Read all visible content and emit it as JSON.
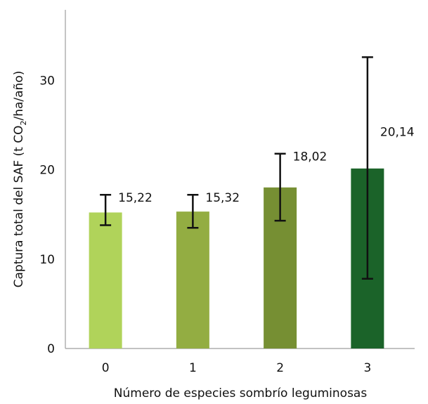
{
  "chart_data": {
    "type": "bar",
    "categories": [
      "0",
      "1",
      "2",
      "3"
    ],
    "values": [
      15.22,
      15.32,
      18.02,
      20.14
    ],
    "value_labels": [
      "15,22",
      "15,32",
      "18,02",
      "20,14"
    ],
    "error_bars": [
      {
        "low": 13.8,
        "high": 17.2
      },
      {
        "low": 13.5,
        "high": 17.2
      },
      {
        "low": 14.3,
        "high": 21.8
      },
      {
        "low": 7.8,
        "high": 32.6
      }
    ],
    "colors": [
      "#b0d35a",
      "#93ad42",
      "#768f33",
      "#1b6329"
    ],
    "title": "",
    "xlabel": "Número de especies sombrío leguminosas",
    "ylabel_parts": {
      "pre": "Captura total del SAF (t CO",
      "sub": "2",
      "post": "/ha/año)"
    },
    "ylim": [
      0,
      37
    ],
    "yticks": [
      0,
      10,
      20,
      30
    ],
    "grid": false,
    "legend": "none"
  }
}
